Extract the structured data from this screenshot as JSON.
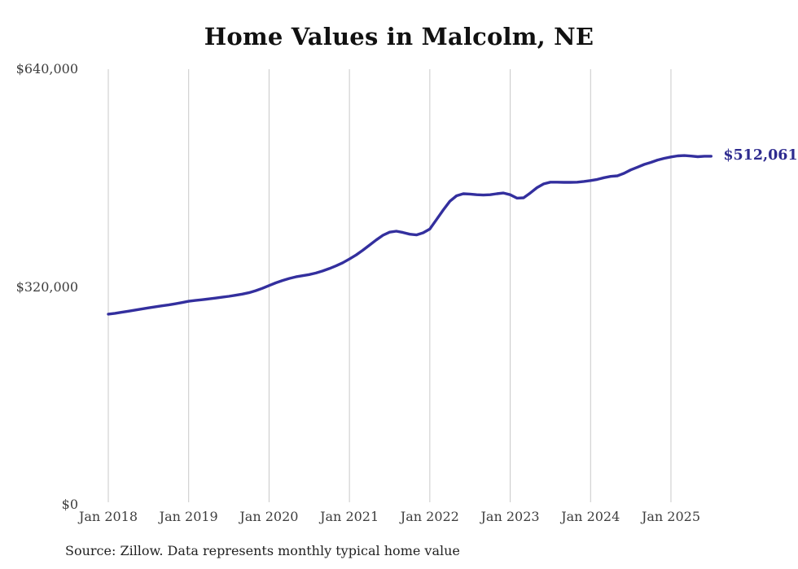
{
  "title": "Home Values in Malcolm, NE",
  "source_note": "Source: Zillow. Data represents monthly typical home value",
  "end_label": "$512,061",
  "colors": {
    "line": "#332f9e",
    "end_label": "#2e2b8f",
    "gridline": "#c9c9c9",
    "axis_text": "#3d3d3d",
    "title_text": "#111111",
    "source_text": "#222222"
  },
  "chart_data": {
    "type": "line",
    "title": "Home Values in Malcolm, NE",
    "series_name": "Monthly typical home value",
    "frequency": "monthly",
    "x_start": "Jan 2018",
    "x_end": "Jul 2025",
    "x_tick_labels": [
      "Jan 2018",
      "Jan 2019",
      "Jan 2020",
      "Jan 2021",
      "Jan 2022",
      "Jan 2023",
      "Jan 2024",
      "Jan 2025"
    ],
    "y_ticks": [
      {
        "label": "$0",
        "value": 0
      },
      {
        "label": "$320,000",
        "value": 320000
      },
      {
        "label": "$640,000",
        "value": 640000
      }
    ],
    "ylim": [
      0,
      640000
    ],
    "grid": "vertical-only",
    "legend": "none",
    "final_value": 512061,
    "values": [
      280000,
      281300,
      282800,
      284400,
      286000,
      287600,
      289200,
      290800,
      292200,
      293600,
      295200,
      297000,
      299000,
      300100,
      301200,
      302400,
      303600,
      304900,
      306300,
      307800,
      309500,
      311500,
      314500,
      318000,
      322000,
      326000,
      329500,
      332500,
      334800,
      336500,
      338200,
      340500,
      343500,
      347000,
      351000,
      355500,
      361000,
      367000,
      374000,
      381500,
      389000,
      396000,
      400500,
      402000,
      400000,
      397500,
      396500,
      399500,
      405000,
      419000,
      433000,
      446000,
      454000,
      457000,
      456500,
      455500,
      455000,
      455500,
      457000,
      458000,
      455500,
      450500,
      451000,
      458000,
      466000,
      471500,
      474000,
      474000,
      473700,
      473700,
      474000,
      475000,
      476400,
      478000,
      480500,
      482400,
      483300,
      487000,
      492000,
      496000,
      500000,
      503000,
      506500,
      509000,
      511000,
      512600,
      513100,
      512300,
      511400,
      512100,
      512061
    ]
  }
}
